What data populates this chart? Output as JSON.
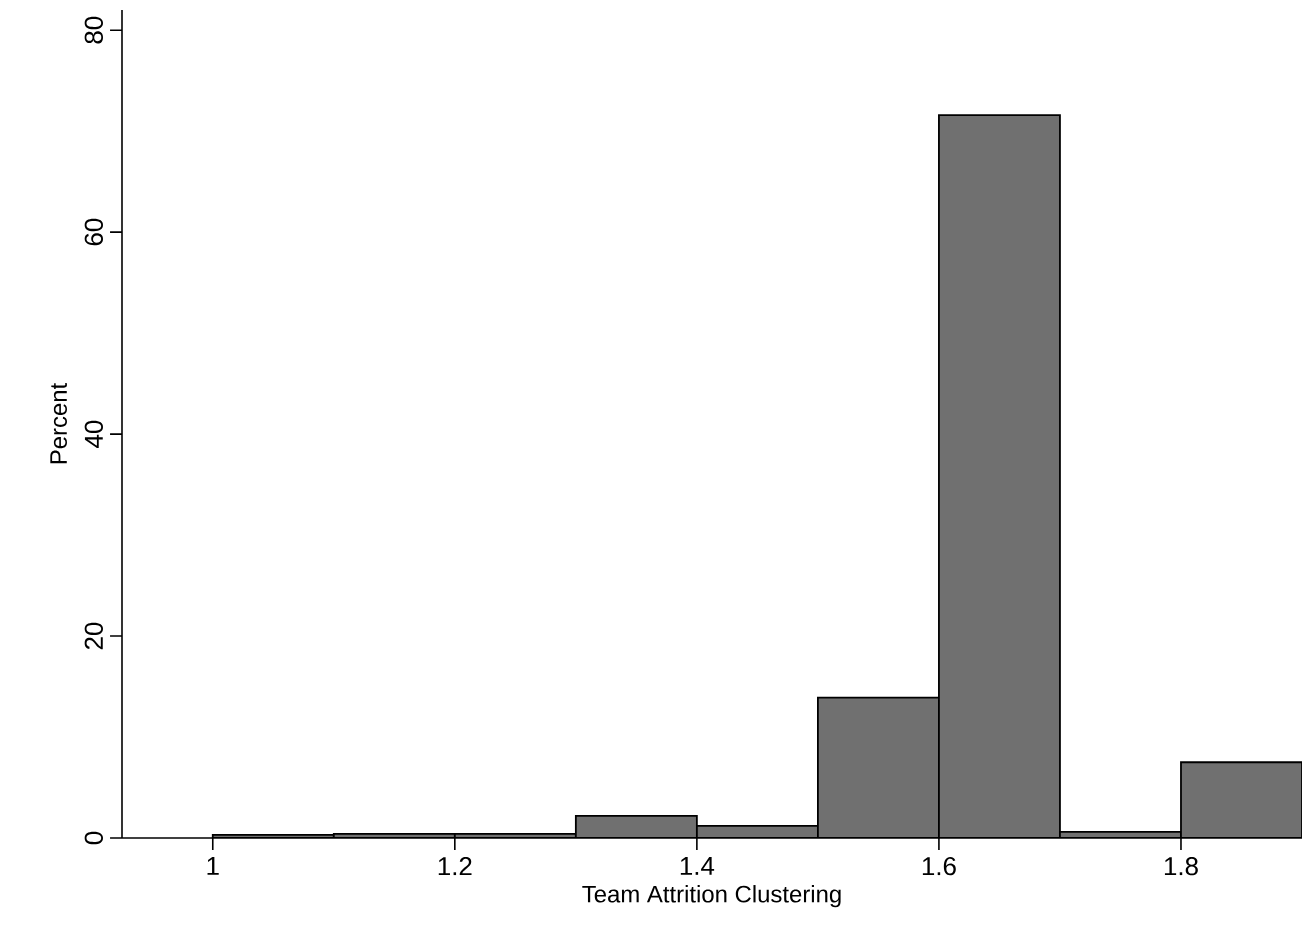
{
  "chart_data": {
    "type": "histogram",
    "xlabel": "Team Attrition Clustering",
    "ylabel": "Percent",
    "bins": [
      1.0,
      1.1,
      1.2,
      1.3,
      1.4,
      1.5,
      1.6,
      1.7,
      1.8,
      1.9
    ],
    "values": [
      0.3,
      0.4,
      0.4,
      2.2,
      1.2,
      13.9,
      71.6,
      0.6,
      7.5
    ],
    "color": "#707070",
    "xlim": [
      0.925,
      1.9
    ],
    "ylim": [
      0,
      82
    ],
    "xticks": [
      1,
      1.2,
      1.4,
      1.6,
      1.8
    ],
    "yticks": [
      0,
      20,
      40,
      60,
      80
    ],
    "grid": false
  }
}
